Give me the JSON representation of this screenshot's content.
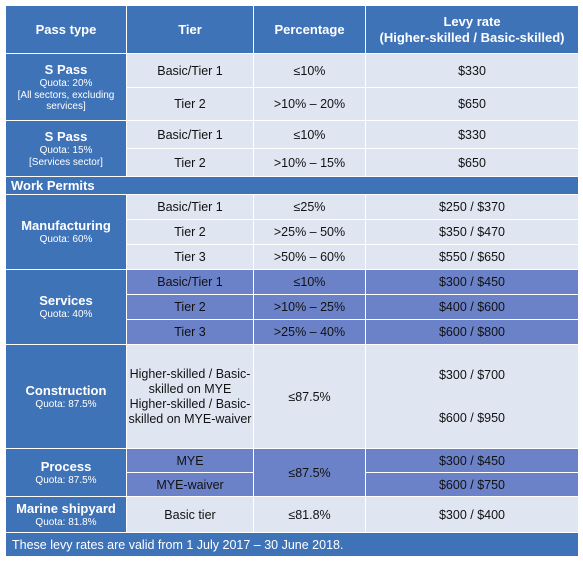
{
  "header": {
    "pass_type": "Pass type",
    "tier": "Tier",
    "percentage": "Percentage",
    "levy_rate": "Levy rate",
    "levy_rate_sub": "(Higher-skilled / Basic-skilled)"
  },
  "s_pass_all": {
    "name": "S Pass",
    "quota": "Quota: 20%",
    "note": "[All sectors, excluding services]",
    "rows": [
      {
        "tier": "Basic/Tier 1",
        "percentage": "≤10%",
        "levy": "$330"
      },
      {
        "tier": "Tier 2",
        "percentage": ">10% – 20%",
        "levy": "$650"
      }
    ]
  },
  "s_pass_services": {
    "name": "S Pass",
    "quota": "Quota: 15%",
    "note": "[Services sector]",
    "rows": [
      {
        "tier": "Basic/Tier 1",
        "percentage": "≤10%",
        "levy": "$330"
      },
      {
        "tier": "Tier 2",
        "percentage": ">10% – 15%",
        "levy": "$650"
      }
    ]
  },
  "work_permits_label": "Work Permits",
  "manufacturing": {
    "name": "Manufacturing",
    "quota": "Quota: 60%",
    "rows": [
      {
        "tier": "Basic/Tier 1",
        "percentage": "≤25%",
        "levy": "$250 / $370"
      },
      {
        "tier": "Tier 2",
        "percentage": ">25% – 50%",
        "levy": "$350 / $470"
      },
      {
        "tier": "Tier 3",
        "percentage": ">50% – 60%",
        "levy": "$550 / $650"
      }
    ]
  },
  "services": {
    "name": "Services",
    "quota": "Quota: 40%",
    "rows": [
      {
        "tier": "Basic/Tier 1",
        "percentage": "≤10%",
        "levy": "$300 / $450"
      },
      {
        "tier": "Tier 2",
        "percentage": ">10% – 25%",
        "levy": "$400 / $600"
      },
      {
        "tier": "Tier 3",
        "percentage": ">25% – 40%",
        "levy": "$600 / $800"
      }
    ]
  },
  "construction": {
    "name": "Construction",
    "quota": "Quota: 87.5%",
    "rows": [
      {
        "tier": "Higher-skilled / Basic-skilled on MYE",
        "levy": "$300 / $700"
      },
      {
        "tier": "Higher-skilled / Basic-skilled on MYE-waiver",
        "levy": "$600 / $950"
      }
    ],
    "percentage": "≤87.5%"
  },
  "process": {
    "name": "Process",
    "quota": "Quota: 87.5%",
    "rows": [
      {
        "tier": "MYE",
        "levy": "$300 / $450"
      },
      {
        "tier": "MYE-waiver",
        "levy": "$600 / $750"
      }
    ],
    "percentage": "≤87.5%"
  },
  "marine": {
    "name": "Marine shipyard",
    "quota": "Quota: 81.8%",
    "tier": "Basic tier",
    "percentage": "≤81.8%",
    "levy": "$300 / $400"
  },
  "footer": "These levy rates are valid from 1 July 2017 – 30 June 2018."
}
